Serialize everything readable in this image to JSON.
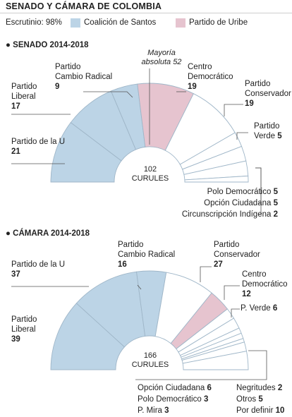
{
  "header": {
    "title": "SENADO Y CÁMARA DE COLOMBIA",
    "scrutiny": "Escrutinio: 98%",
    "legend_santos": "Coalición de Santos",
    "legend_uribe": "Partido de Uribe"
  },
  "colors": {
    "santos": "#bcd4e6",
    "uribe": "#e6c4cf",
    "other": "#ffffff",
    "stroke": "#9fb6c8",
    "leader": "#555555"
  },
  "chart_data": [
    {
      "type": "parliament",
      "title": "SENADO 2014-2018",
      "total_label": "102",
      "total_unit": "CURULES",
      "majority_label": "Mayoría absoluta 52",
      "series": [
        {
          "name": "Partido de la U",
          "value": 21,
          "group": "santos"
        },
        {
          "name": "Partido Liberal",
          "value": 17,
          "group": "santos"
        },
        {
          "name": "Partido Cambio Radical",
          "value": 9,
          "group": "santos"
        },
        {
          "name": "Centro Democrático",
          "value": 19,
          "group": "uribe"
        },
        {
          "name": "Partido Conservador",
          "value": 19,
          "group": "other"
        },
        {
          "name": "Partido Verde",
          "value": 5,
          "group": "other"
        },
        {
          "name": "Polo Democrático",
          "value": 5,
          "group": "other"
        },
        {
          "name": "Opción Ciudadana",
          "value": 5,
          "group": "other"
        },
        {
          "name": "Circunscripción Indígena",
          "value": 2,
          "group": "other"
        }
      ]
    },
    {
      "type": "parliament",
      "title": "CÁMARA 2014-2018",
      "total_label": "166",
      "total_unit": "CURULES",
      "series": [
        {
          "name": "Partido Liberal",
          "value": 39,
          "group": "santos"
        },
        {
          "name": "Partido de la U",
          "value": 37,
          "group": "santos"
        },
        {
          "name": "Partido Cambio Radical",
          "value": 16,
          "group": "santos"
        },
        {
          "name": "Partido Conservador",
          "value": 27,
          "group": "other"
        },
        {
          "name": "Centro Democrático",
          "value": 12,
          "group": "uribe"
        },
        {
          "name": "P. Verde",
          "value": 6,
          "group": "other"
        },
        {
          "name": "Opción Ciudadana",
          "value": 6,
          "group": "other"
        },
        {
          "name": "Polo Democrático",
          "value": 3,
          "group": "other"
        },
        {
          "name": "P. Mira",
          "value": 3,
          "group": "other"
        },
        {
          "name": "Negritudes",
          "value": 2,
          "group": "other"
        },
        {
          "name": "Otros",
          "value": 5,
          "group": "other"
        },
        {
          "name": "Por definir",
          "value": 10,
          "group": "other"
        }
      ]
    }
  ],
  "labels": {
    "senado": {
      "partido_u": {
        "line1": "Partido de la U",
        "value": "21"
      },
      "liberal": {
        "line1": "Partido",
        "line2": "Liberal",
        "value": "17"
      },
      "cambio": {
        "line1": "Partido",
        "line2": "Cambio Radical",
        "value": "9"
      },
      "majority_1": "Mayoría",
      "majority_2": "absoluta 52",
      "centro": {
        "line1": "Centro",
        "line2": "Democrático",
        "value": "19"
      },
      "conservador": {
        "line1": "Partido",
        "line2": "Conservador",
        "value": "19"
      },
      "verde": {
        "line1": "Partido",
        "line2": "Verde",
        "value": "5"
      },
      "polo": {
        "name": "Polo Democrático",
        "value": "5"
      },
      "opcion": {
        "name": "Opción Ciudadana",
        "value": "5"
      },
      "indigena": {
        "name": "Circunscripción Indígena",
        "value": "2"
      }
    },
    "camara": {
      "partido_u": {
        "line1": "Partido de la U",
        "value": "37"
      },
      "liberal": {
        "line1": "Partido",
        "line2": "Liberal",
        "value": "39"
      },
      "cambio": {
        "line1": "Partido",
        "line2": "Cambio Radical",
        "value": "16"
      },
      "conservador": {
        "line1": "Partido",
        "line2": "Conservador",
        "value": "27"
      },
      "centro": {
        "line1": "Centro",
        "line2": "Democrático",
        "value": "12"
      },
      "verde": {
        "name": "P. Verde",
        "value": "6"
      },
      "opcion": {
        "name": "Opción Ciudadana",
        "value": "6"
      },
      "polo": {
        "name": "Polo Democrático",
        "value": "3"
      },
      "mira": {
        "name": "P. Mira",
        "value": "3"
      },
      "negritudes": {
        "name": "Negritudes",
        "value": "2"
      },
      "otros": {
        "name": "Otros",
        "value": "5"
      },
      "definir": {
        "name": "Por definir",
        "value": "10"
      }
    }
  }
}
